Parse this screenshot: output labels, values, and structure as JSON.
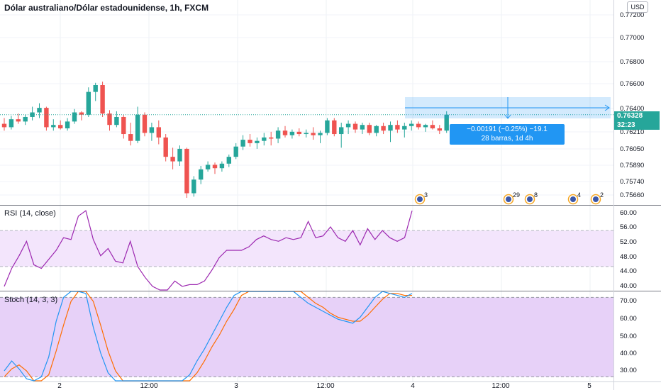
{
  "chart_header": {
    "title": "Dólar australiano/Dólar estadounidense, 1h, FXCM",
    "currency_badge": "USD"
  },
  "price_axis": [
    "0.77200",
    "0.77000",
    "0.76800",
    "0.76600",
    "0.76400",
    "0.76210",
    "0.76050",
    "0.75890",
    "0.75740",
    "0.75660"
  ],
  "current_price": "0.76328",
  "countdown": "32:23",
  "time_axis": [
    "2",
    "12:00",
    "3",
    "12:00",
    "4",
    "12:00",
    "5"
  ],
  "measure_tool": {
    "line1": "−0.00191 (−0.25%) −19.1",
    "line2": "28 barras, 1d 4h"
  },
  "event_badges": [
    "3",
    "29",
    "8",
    "4",
    "2"
  ],
  "rsi": {
    "label": "RSI (14, close)",
    "axis": [
      "60.00",
      "56.00",
      "52.00",
      "48.00",
      "44.00",
      "40.00"
    ]
  },
  "stoch": {
    "label": "Stoch (14, 3, 3)",
    "axis": [
      "70.00",
      "60.00",
      "50.00",
      "40.00",
      "30.00"
    ]
  },
  "colors": {
    "up": "#26a69a",
    "down": "#ef5350",
    "rsi_line": "#9c27b0",
    "rsi_band": "#f3e5fc",
    "stoch_k": "#2196f3",
    "stoch_d": "#ff6d00",
    "stoch_band": "#e7d1f8",
    "measure": "#2196f3"
  },
  "chart_data": {
    "type": "candlestick",
    "ylim": [
      0.7555,
      0.7725
    ],
    "candles": [
      [
        0.7625,
        0.763,
        0.7619,
        0.7622
      ],
      [
        0.7622,
        0.7632,
        0.762,
        0.7629
      ],
      [
        0.7629,
        0.7634,
        0.7625,
        0.7627
      ],
      [
        0.7627,
        0.7633,
        0.7624,
        0.7631
      ],
      [
        0.7631,
        0.764,
        0.7628,
        0.7635
      ],
      [
        0.7635,
        0.7643,
        0.763,
        0.7639
      ],
      [
        0.7639,
        0.764,
        0.7619,
        0.7622
      ],
      [
        0.7622,
        0.7629,
        0.7619,
        0.7624
      ],
      [
        0.7624,
        0.7628,
        0.762,
        0.7621
      ],
      [
        0.7621,
        0.763,
        0.7619,
        0.7627
      ],
      [
        0.7627,
        0.7638,
        0.7625,
        0.7635
      ],
      [
        0.7635,
        0.7636,
        0.7628,
        0.7633
      ],
      [
        0.7633,
        0.7657,
        0.7631,
        0.7653
      ],
      [
        0.7653,
        0.7661,
        0.7645,
        0.7659
      ],
      [
        0.7659,
        0.7662,
        0.7631,
        0.7634
      ],
      [
        0.7634,
        0.7637,
        0.7619,
        0.7624
      ],
      [
        0.7624,
        0.7636,
        0.7622,
        0.7631
      ],
      [
        0.7631,
        0.7633,
        0.7612,
        0.7616
      ],
      [
        0.7616,
        0.7626,
        0.7606,
        0.761
      ],
      [
        0.761,
        0.764,
        0.7608,
        0.7633
      ],
      [
        0.7633,
        0.7635,
        0.7614,
        0.7617
      ],
      [
        0.7617,
        0.7626,
        0.761,
        0.7622
      ],
      [
        0.7622,
        0.7628,
        0.7607,
        0.7613
      ],
      [
        0.7613,
        0.7616,
        0.7592,
        0.7596
      ],
      [
        0.7596,
        0.7604,
        0.7585,
        0.7592
      ],
      [
        0.7592,
        0.7606,
        0.7588,
        0.7603
      ],
      [
        0.7603,
        0.7604,
        0.756,
        0.7564
      ],
      [
        0.7564,
        0.7579,
        0.7561,
        0.7576
      ],
      [
        0.7576,
        0.7588,
        0.7572,
        0.7585
      ],
      [
        0.7585,
        0.7592,
        0.7583,
        0.7589
      ],
      [
        0.7589,
        0.7591,
        0.7581,
        0.7586
      ],
      [
        0.7586,
        0.7592,
        0.7583,
        0.759
      ],
      [
        0.759,
        0.7598,
        0.7587,
        0.7596
      ],
      [
        0.7596,
        0.7608,
        0.7594,
        0.7605
      ],
      [
        0.7605,
        0.7615,
        0.7602,
        0.7611
      ],
      [
        0.7611,
        0.7616,
        0.7605,
        0.7608
      ],
      [
        0.7608,
        0.7613,
        0.7603,
        0.761
      ],
      [
        0.761,
        0.7617,
        0.7606,
        0.7613
      ],
      [
        0.7613,
        0.7618,
        0.7606,
        0.7612
      ],
      [
        0.7612,
        0.7622,
        0.7608,
        0.7619
      ],
      [
        0.7619,
        0.7623,
        0.7613,
        0.7615
      ],
      [
        0.7615,
        0.762,
        0.7612,
        0.7618
      ],
      [
        0.7618,
        0.7621,
        0.7614,
        0.7616
      ],
      [
        0.7616,
        0.762,
        0.7613,
        0.7617
      ],
      [
        0.7617,
        0.7622,
        0.7611,
        0.7615
      ],
      [
        0.7615,
        0.7619,
        0.7608,
        0.7617
      ],
      [
        0.7617,
        0.763,
        0.7615,
        0.7628
      ],
      [
        0.7628,
        0.763,
        0.7614,
        0.7616
      ],
      [
        0.7616,
        0.7626,
        0.7604,
        0.7622
      ],
      [
        0.7622,
        0.7628,
        0.7616,
        0.7625
      ],
      [
        0.7625,
        0.7627,
        0.7617,
        0.762
      ],
      [
        0.762,
        0.7626,
        0.7616,
        0.7624
      ],
      [
        0.7624,
        0.7626,
        0.7615,
        0.7617
      ],
      [
        0.7617,
        0.7624,
        0.7614,
        0.7623
      ],
      [
        0.7623,
        0.7626,
        0.7616,
        0.7619
      ],
      [
        0.7619,
        0.7627,
        0.7609,
        0.7624
      ],
      [
        0.7624,
        0.7628,
        0.7617,
        0.762
      ],
      [
        0.762,
        0.7626,
        0.7613,
        0.7623
      ],
      [
        0.7623,
        0.7628,
        0.7619,
        0.7625
      ],
      [
        0.7625,
        0.7627,
        0.762,
        0.7622
      ],
      [
        0.7622,
        0.7625,
        0.7618,
        0.7624
      ],
      [
        0.7624,
        0.7628,
        0.762,
        0.7621
      ],
      [
        0.7621,
        0.7624,
        0.7616,
        0.7619
      ],
      [
        0.7619,
        0.7636,
        0.7617,
        0.7633
      ]
    ],
    "rsi_ylim": [
      38.5,
      61.5
    ],
    "rsi_band": [
      45,
      55
    ],
    "rsi_values": [
      39.5,
      44.5,
      48,
      52,
      45.5,
      44.5,
      47,
      49.5,
      53,
      52.5,
      59,
      60.5,
      52.5,
      48,
      50,
      46.5,
      46,
      52,
      45,
      42,
      39.5,
      36,
      38,
      41,
      39.5,
      40,
      40,
      41,
      44,
      47.5,
      49.5,
      49.5,
      49.5,
      50.5,
      52.5,
      53.5,
      52.5,
      52,
      53,
      52.5,
      53,
      57.5,
      53,
      53.5,
      56,
      53,
      52,
      55,
      51,
      55.5,
      52.5,
      55,
      53,
      52,
      53,
      60.5
    ],
    "stoch_ylim": [
      28,
      73
    ],
    "stoch_band": [
      30,
      70
    ],
    "stoch_k": [
      33,
      38,
      34,
      29,
      24,
      30,
      40,
      58,
      70,
      78,
      79,
      72,
      55,
      42,
      32,
      25,
      24,
      26,
      24,
      22,
      20,
      19,
      21,
      23,
      26,
      31,
      38,
      44,
      51,
      58,
      65,
      71,
      77,
      82,
      86,
      85,
      82,
      79,
      76,
      73,
      70,
      67,
      65,
      63,
      61,
      59,
      58,
      57,
      60,
      65,
      70,
      73,
      72,
      71,
      70,
      72
    ],
    "stoch_d": [
      30,
      34,
      36,
      33,
      28,
      27,
      31,
      43,
      56,
      68,
      76,
      76,
      68,
      56,
      43,
      33,
      27,
      25,
      25,
      24,
      22,
      21,
      20,
      21,
      23,
      27,
      32,
      38,
      45,
      51,
      58,
      64,
      71,
      77,
      82,
      85,
      84,
      82,
      79,
      76,
      73,
      70,
      67,
      65,
      62,
      60,
      59,
      58,
      58,
      61,
      65,
      69,
      72,
      72,
      71,
      71
    ]
  }
}
